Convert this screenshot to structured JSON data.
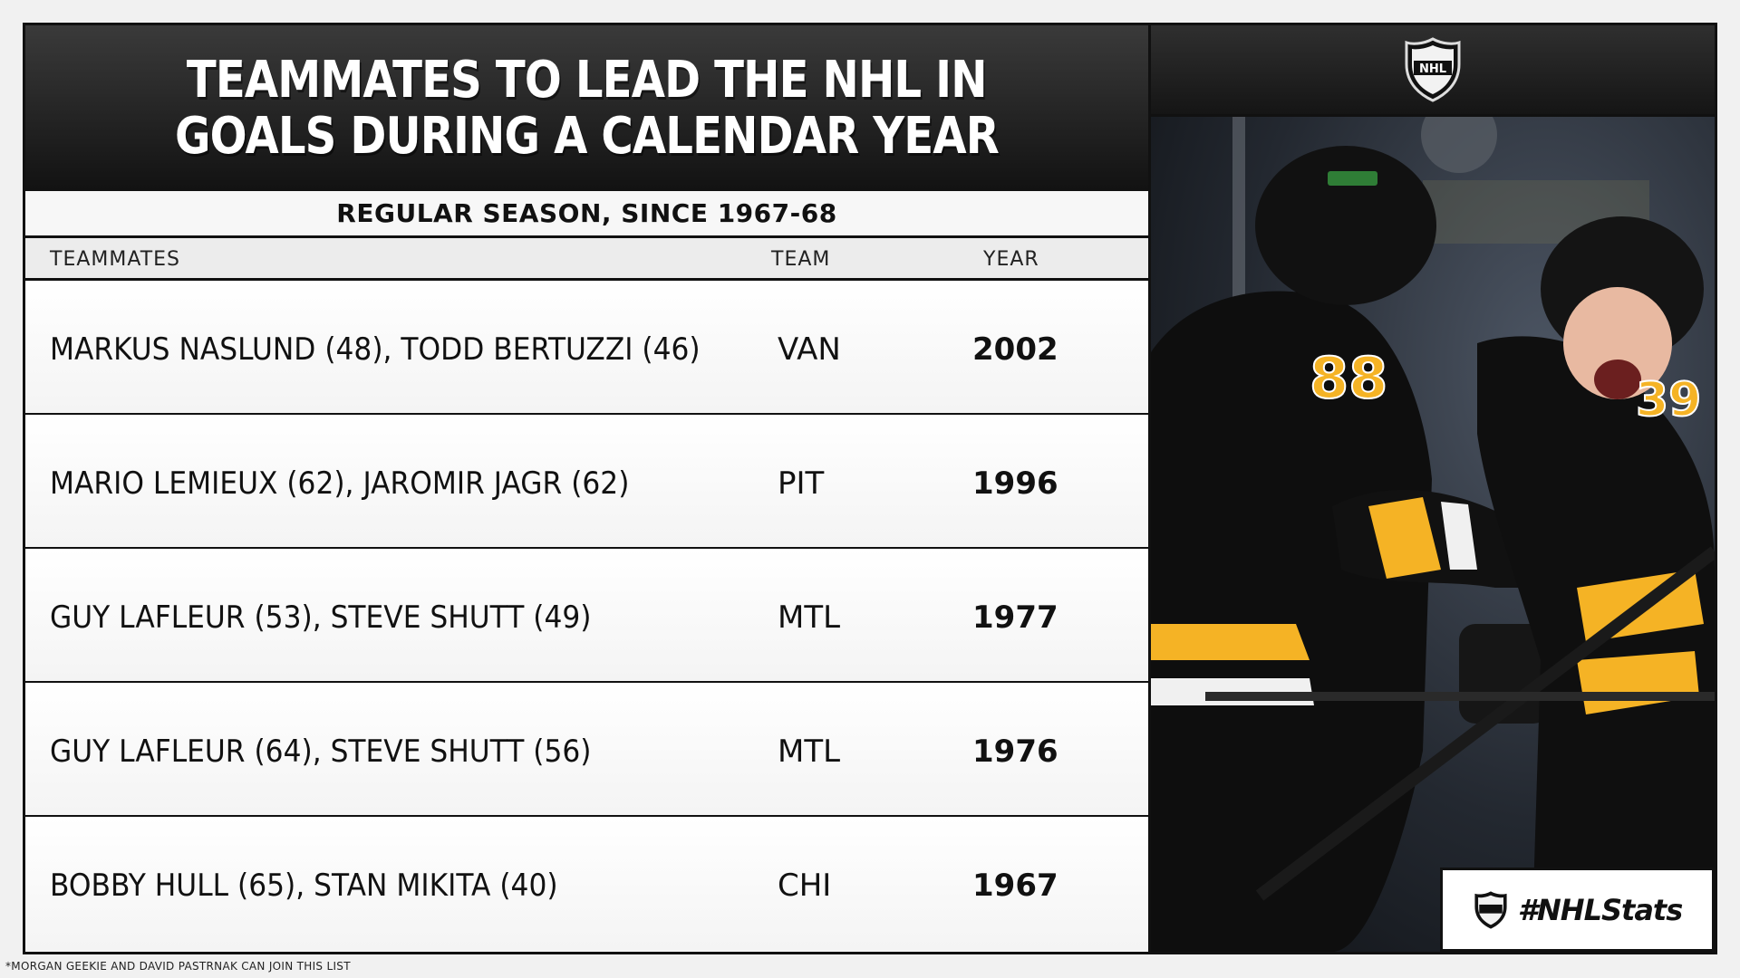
{
  "title": {
    "line1": "TEAMMATES TO LEAD THE NHL IN",
    "line2": "GOALS DURING A CALENDAR YEAR"
  },
  "subtitle": "REGULAR SEASON, SINCE 1967-68",
  "columns": {
    "teammates": "TEAMMATES",
    "team": "TEAM",
    "year": "YEAR"
  },
  "rows": [
    {
      "teammates": "MARKUS NASLUND (48), TODD BERTUZZI (46)",
      "team": "VAN",
      "year": "2002"
    },
    {
      "teammates": "MARIO LEMIEUX (62), JAROMIR JAGR (62)",
      "team": "PIT",
      "year": "1996"
    },
    {
      "teammates": "GUY LAFLEUR (53), STEVE SHUTT (49)",
      "team": "MTL",
      "year": "1977"
    },
    {
      "teammates": "GUY LAFLEUR (64), STEVE SHUTT (56)",
      "team": "MTL",
      "year": "1976"
    },
    {
      "teammates": "BOBBY HULL (65), STAN MIKITA (40)",
      "team": "CHI",
      "year": "1967"
    }
  ],
  "footnote": "*MORGAN GEEKIE AND DAVID PASTRNAK CAN JOIN THIS LIST",
  "hashtag": "#NHLStats",
  "logo": {
    "text": "NHL",
    "icon": "nhl-shield-icon"
  },
  "photo": {
    "jersey_numbers": [
      "88",
      "39"
    ]
  },
  "colors": {
    "dark": "#111111",
    "bruins_gold": "#f5b325",
    "panel_bg": "#f7f7f7"
  }
}
